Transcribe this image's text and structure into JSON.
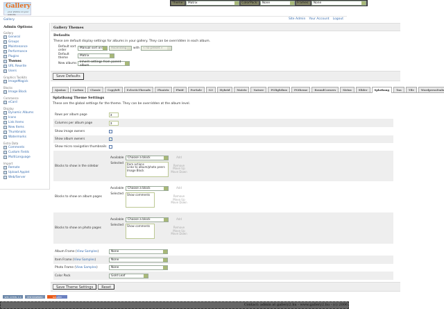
{
  "topbar": {
    "theme_label": "Theme:",
    "theme_value": "Matrix",
    "colorpack_label": "ColorPack:",
    "colorpack_value": "None",
    "frames_label": "Frames:",
    "frames_value": "None"
  },
  "logo": {
    "text": "Gallery",
    "sub": "your photos on your website"
  },
  "breadcrumb": "Gallery",
  "toplinks": [
    "Site Admin",
    "Your Account",
    "Logout"
  ],
  "sidebar": {
    "title": "Admin Options",
    "groups": [
      {
        "name": "Gallery",
        "items": [
          "General",
          "Groups",
          "Maintenance",
          "Performance",
          "Plugins",
          "Themes",
          "URL Rewrite",
          "Users"
        ]
      },
      {
        "name": "Graphics Toolkits",
        "items": [
          "ImageMagick"
        ]
      },
      {
        "name": "Blocks",
        "items": [
          "Image Block"
        ]
      },
      {
        "name": "Commerce",
        "items": [
          "eCard"
        ]
      },
      {
        "name": "Display",
        "items": [
          "Dynamic Albums",
          "Icons",
          "Link Items",
          "New Items",
          "Thumbnails",
          "Watermarks"
        ]
      },
      {
        "name": "Extra Data",
        "items": [
          "Comments",
          "Custom Fields",
          "MultiLanguage"
        ]
      },
      {
        "name": "Import",
        "items": [
          "Remote",
          "Upload Applet",
          "Web/Server"
        ]
      }
    ],
    "current": "Themes"
  },
  "main": {
    "title": "Gallery Themes",
    "defaults": {
      "heading": "Defaults",
      "description": "These are default display settings for albums in your gallery. They can be overridden in each album.",
      "sort_label": "Default sort order",
      "sort_value": "Manual sort order",
      "sort_dir": "Ascending",
      "with_label": "with",
      "with_value": "« no preset »",
      "theme_label": "Default theme",
      "theme_value": "Matrix",
      "new_label": "New albums",
      "new_value": "Inherit settings from parent album",
      "save": "Save Defaults"
    },
    "tabs": [
      "Ajaxian",
      "Carbon",
      "Classic",
      "Copyleft",
      "EclecticThreads",
      "Floatrix",
      "Fluid",
      "PorSale",
      "G3",
      "Hybrid",
      "Matrix",
      "Nature",
      "PGlightbox",
      "PGtheme",
      "RoundCorners",
      "Siriux",
      "Slider",
      "Splatbang",
      "Tan",
      "Tile",
      "WordpressEmbedded"
    ],
    "active_tab": "Splatbang",
    "settings": {
      "heading": "Splatbang Theme Settings",
      "description": "These are the global settings for the theme. They can be overridden at the album level.",
      "rows_label": "Rows per album page",
      "rows_value": "3",
      "cols_label": "Columns per album page",
      "cols_value": "3",
      "image_owners_label": "Show image owners",
      "image_owners": false,
      "album_owners_label": "Show album owners",
      "album_owners": true,
      "micro_label": "Show micro navigation thumbnails",
      "micro": false,
      "blocks": [
        {
          "label": "Blocks to show in the sidebar",
          "available": "Choose a block",
          "selected": [
            "Item actions",
            "Links to album/photo peers",
            "Image Block"
          ]
        },
        {
          "label": "Blocks to show on album pages",
          "available": "Choose a block",
          "selected": [
            "Show comments"
          ]
        },
        {
          "label": "Blocks to show on photo pages",
          "available": "Choose a block",
          "selected": [
            "Show comments"
          ]
        }
      ],
      "available_label": "Available",
      "selected_label": "Selected",
      "add": "Add",
      "remove": "Remove",
      "move_up": "Move Up",
      "move_down": "Move Down",
      "album_frame_label": "Album Frame",
      "item_frame_label": "Item Frame",
      "photo_frame_label": "Photo Frame",
      "view_samples": "View Samples",
      "album_frame": "None",
      "item_frame": "None",
      "photo_frame": "None",
      "colorpack_label": "Color Pack",
      "colorpack": "Gold Leaf",
      "save": "Save Theme Settings",
      "reset": "Reset"
    }
  },
  "badges": [
    "W3C XHTML 1.0",
    "PHP POWERED",
    "GALLERY"
  ],
  "footer": "Contact: admin at gallery2.hu - www.gallery2.hu - (c) 2006"
}
